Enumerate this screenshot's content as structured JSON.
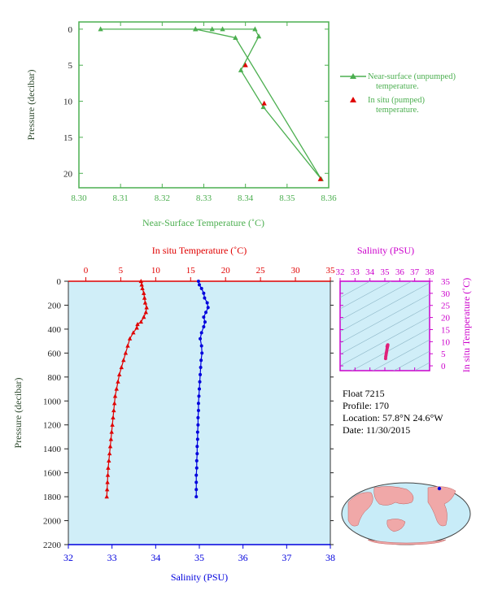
{
  "colors": {
    "near_surface": "#4caf50",
    "in_situ": "#e00000",
    "salinity": "#0000dd",
    "ts_magenta": "#cc00cc",
    "axis_dark": "#222222",
    "plot_bg": "#d0eef8",
    "map_land": "#f0a8a8",
    "map_ocean": "#c8ecf8"
  },
  "float_info": {
    "float": "Float  7215",
    "profile": "Profile:  170",
    "location": "Location:  57.8°N  24.6°W",
    "date": "Date:  11/30/2015"
  },
  "footer_tag": "",
  "chart_data": [
    {
      "type": "line",
      "title": "",
      "xlabel": "Near-Surface Temperature (˚C)",
      "ylabel": "Pressure (decibar)",
      "xlim": [
        8.3,
        8.36
      ],
      "ylim": [
        22,
        -1
      ],
      "x_ticks": [
        "8.30",
        "8.31",
        "8.32",
        "8.33",
        "8.34",
        "8.35",
        "8.36"
      ],
      "y_ticks": [
        "0",
        "5",
        "10",
        "15",
        "20"
      ],
      "legend_position": "right",
      "series": [
        {
          "name": "Near-surface (unpumped) temperature.",
          "marker": "triangle",
          "points": [
            [
              8.3052,
              0.0
            ],
            [
              8.328,
              0.0
            ],
            [
              8.332,
              0.0
            ],
            [
              8.3345,
              0.0
            ],
            [
              8.3423,
              0.0
            ],
            [
              8.3432,
              1.0
            ],
            [
              8.3389,
              5.7
            ],
            [
              8.3443,
              10.8
            ],
            [
              8.3582,
              20.8
            ],
            [
              8.3376,
              1.2
            ],
            [
              8.328,
              0.0
            ]
          ]
        },
        {
          "name": "In situ (pumped) temperature.",
          "marker": "triangle",
          "points": [
            [
              8.34,
              5.0
            ],
            [
              8.3445,
              10.3
            ],
            [
              8.358,
              20.8
            ]
          ]
        }
      ]
    },
    {
      "type": "line",
      "top_axis_label": "In situ Temperature (˚C)",
      "bottom_axis_label": "Salinity (PSU)",
      "ylabel": "Pressure (decibar)",
      "temp_lim": [
        -2.5,
        35
      ],
      "sal_lim": [
        32,
        38
      ],
      "ylim": [
        2200,
        0
      ],
      "temp_ticks": [
        "0",
        "5",
        "10",
        "15",
        "20",
        "25",
        "30",
        "35"
      ],
      "sal_ticks": [
        "32",
        "33",
        "34",
        "35",
        "36",
        "37",
        "38"
      ],
      "y_ticks": [
        "0",
        "200",
        "400",
        "600",
        "800",
        "1000",
        "1200",
        "1400",
        "1600",
        "1800",
        "2000",
        "2200"
      ],
      "series": [
        {
          "name": "In situ Temperature",
          "points": [
            [
              7.9,
              0
            ],
            [
              8.0,
              30
            ],
            [
              8.1,
              60
            ],
            [
              8.3,
              100
            ],
            [
              8.4,
              140
            ],
            [
              8.5,
              180
            ],
            [
              8.7,
              220
            ],
            [
              8.6,
              260
            ],
            [
              8.3,
              300
            ],
            [
              7.9,
              340
            ],
            [
              7.4,
              360
            ],
            [
              7.3,
              390
            ],
            [
              6.8,
              430
            ],
            [
              6.3,
              480
            ],
            [
              6.0,
              540
            ],
            [
              5.7,
              600
            ],
            [
              5.4,
              660
            ],
            [
              5.1,
              720
            ],
            [
              4.8,
              780
            ],
            [
              4.6,
              840
            ],
            [
              4.4,
              900
            ],
            [
              4.2,
              960
            ],
            [
              4.1,
              1020
            ],
            [
              4.0,
              1080
            ],
            [
              3.9,
              1140
            ],
            [
              3.8,
              1200
            ],
            [
              3.7,
              1260
            ],
            [
              3.6,
              1320
            ],
            [
              3.5,
              1380
            ],
            [
              3.4,
              1440
            ],
            [
              3.3,
              1500
            ],
            [
              3.2,
              1560
            ],
            [
              3.15,
              1620
            ],
            [
              3.1,
              1680
            ],
            [
              3.05,
              1740
            ],
            [
              3.0,
              1800
            ]
          ]
        },
        {
          "name": "Salinity",
          "points": [
            [
              34.98,
              0
            ],
            [
              35.0,
              30
            ],
            [
              35.05,
              60
            ],
            [
              35.1,
              100
            ],
            [
              35.12,
              140
            ],
            [
              35.18,
              180
            ],
            [
              35.2,
              220
            ],
            [
              35.15,
              260
            ],
            [
              35.1,
              300
            ],
            [
              35.13,
              340
            ],
            [
              35.1,
              380
            ],
            [
              35.05,
              430
            ],
            [
              35.02,
              480
            ],
            [
              35.05,
              540
            ],
            [
              35.06,
              600
            ],
            [
              35.04,
              660
            ],
            [
              35.03,
              720
            ],
            [
              35.02,
              780
            ],
            [
              35.01,
              840
            ],
            [
              35.0,
              900
            ],
            [
              34.99,
              960
            ],
            [
              34.98,
              1020
            ],
            [
              34.98,
              1080
            ],
            [
              34.97,
              1140
            ],
            [
              34.97,
              1200
            ],
            [
              34.96,
              1260
            ],
            [
              34.96,
              1320
            ],
            [
              34.95,
              1380
            ],
            [
              34.95,
              1440
            ],
            [
              34.94,
              1500
            ],
            [
              34.94,
              1560
            ],
            [
              34.93,
              1620
            ],
            [
              34.93,
              1680
            ],
            [
              34.93,
              1740
            ],
            [
              34.93,
              1800
            ]
          ]
        }
      ]
    },
    {
      "type": "scatter",
      "title": "Salinity (PSU)",
      "ylabel": "In situ Temperature (˚C)",
      "xlim": [
        32,
        38
      ],
      "ylim": [
        -2,
        35
      ],
      "x_ticks": [
        "32",
        "33",
        "34",
        "35",
        "36",
        "37",
        "38"
      ],
      "y_ticks": [
        "0",
        "5",
        "10",
        "15",
        "20",
        "25",
        "30",
        "35"
      ],
      "points": [
        [
          35.05,
          3.0
        ],
        [
          35.06,
          3.8
        ],
        [
          35.08,
          4.5
        ],
        [
          35.1,
          5.3
        ],
        [
          35.12,
          6.0
        ],
        [
          35.14,
          6.8
        ],
        [
          35.16,
          7.4
        ],
        [
          35.18,
          8.0
        ],
        [
          35.19,
          8.4
        ],
        [
          35.2,
          8.7
        ],
        [
          35.18,
          8.5
        ],
        [
          35.15,
          8.0
        ]
      ]
    }
  ]
}
